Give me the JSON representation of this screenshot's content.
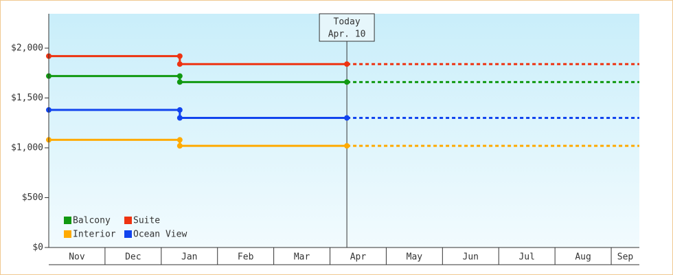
{
  "chart_data": {
    "type": "line",
    "categories": [
      "Nov",
      "Dec",
      "Jan",
      "Feb",
      "Mar",
      "Apr",
      "May",
      "Jun",
      "Jul",
      "Aug",
      "Sep"
    ],
    "xlim": [
      0,
      10.5
    ],
    "ylim": [
      0,
      2345
    ],
    "yticks": [
      {
        "value": 0,
        "label": "$0"
      },
      {
        "value": 500,
        "label": "$500"
      },
      {
        "value": 1000,
        "label": "$1,000"
      },
      {
        "value": 1500,
        "label": "$1,500"
      },
      {
        "value": 2000,
        "label": "$2,000"
      }
    ],
    "today": {
      "x": 5.3,
      "label_1": "Today",
      "label_2": "Apr. 10"
    },
    "series": [
      {
        "name": "Balcony",
        "color": "#119911",
        "x": [
          0,
          2.33,
          2.33,
          5.3
        ],
        "values": [
          1720,
          1720,
          1660,
          1660
        ]
      },
      {
        "name": "Suite",
        "color": "#ee3311",
        "x": [
          0,
          2.33,
          2.33,
          5.3
        ],
        "values": [
          1920,
          1920,
          1840,
          1840
        ]
      },
      {
        "name": "Interior",
        "color": "#ffaa00",
        "x": [
          0,
          2.33,
          2.33,
          5.3
        ],
        "values": [
          1080,
          1080,
          1020,
          1020
        ]
      },
      {
        "name": "Ocean View",
        "color": "#1144ee",
        "x": [
          0,
          2.33,
          2.33,
          5.3
        ],
        "values": [
          1380,
          1380,
          1300,
          1300
        ]
      }
    ]
  }
}
